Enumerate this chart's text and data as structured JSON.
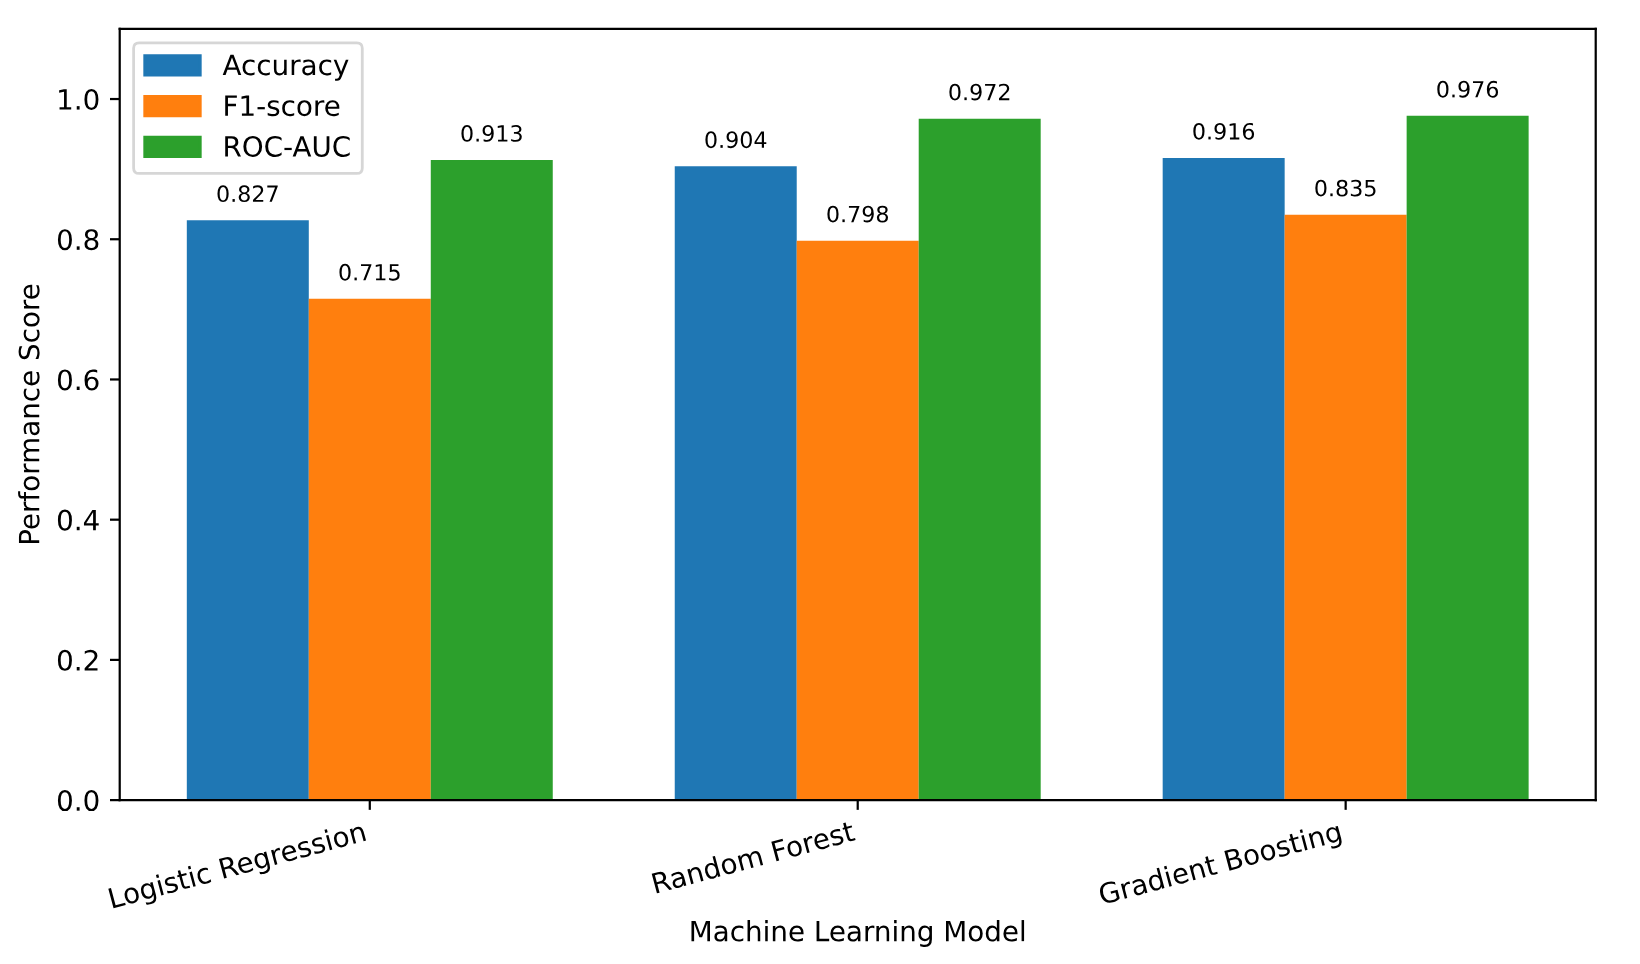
{
  "chart_data": {
    "type": "bar",
    "xlabel": "Machine Learning Model",
    "ylabel": "Performance Score",
    "categories": [
      "Logistic Regression",
      "Random Forest",
      "Gradient Boosting"
    ],
    "series": [
      {
        "name": "Accuracy",
        "color": "#1f77b4",
        "values": [
          0.827,
          0.904,
          0.916
        ]
      },
      {
        "name": "F1-score",
        "color": "#ff7f0e",
        "values": [
          0.715,
          0.798,
          0.835
        ]
      },
      {
        "name": "ROC-AUC",
        "color": "#2ca02c",
        "values": [
          0.913,
          0.972,
          0.976
        ]
      }
    ],
    "ylim": [
      0,
      1.1
    ],
    "yticks": [
      {
        "value": 0,
        "label": "0.0"
      },
      {
        "value": 0.2,
        "label": "0.2"
      },
      {
        "value": 0.4,
        "label": "0.4"
      },
      {
        "value": 0.6,
        "label": "0.6"
      },
      {
        "value": 0.8,
        "label": "0.8"
      },
      {
        "value": 1.0,
        "label": "1.0"
      }
    ],
    "data_labels": true,
    "legend": "top left",
    "grid": false
  }
}
